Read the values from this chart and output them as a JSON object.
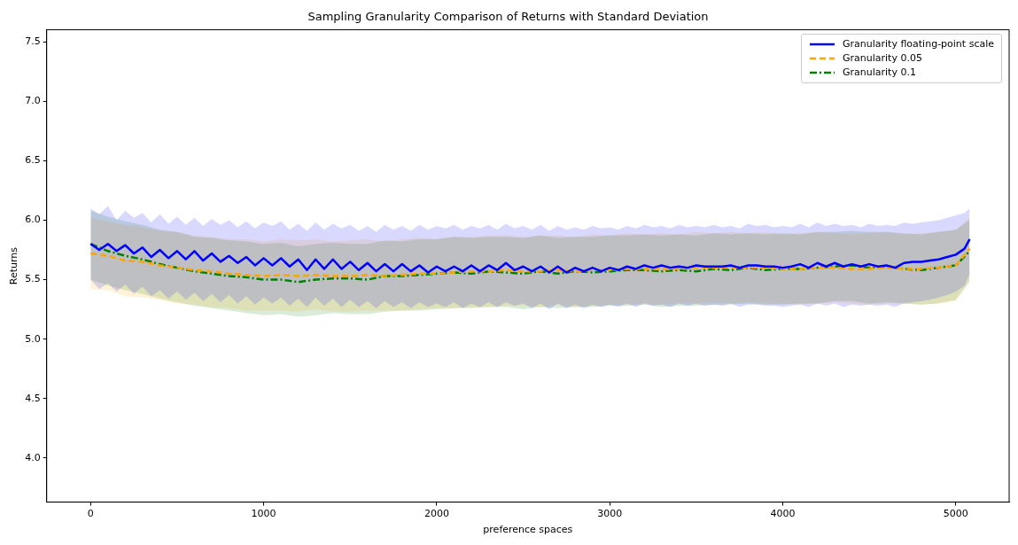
{
  "chart_data": {
    "type": "line",
    "title": "Sampling Granularity Comparison of Returns with Standard Deviation",
    "xlabel": "preference spaces",
    "ylabel": "Returns",
    "xlim": [
      -254,
      5308
    ],
    "ylim": [
      3.63,
      7.6
    ],
    "xticks": [
      0,
      1000,
      2000,
      3000,
      4000,
      5000
    ],
    "yticks": [
      {
        "value": 4,
        "label": "4.0"
      },
      {
        "value": 4.5,
        "label": "4.5"
      },
      {
        "value": 5,
        "label": "5.0"
      },
      {
        "value": 5.5,
        "label": "5.5"
      },
      {
        "value": 6,
        "label": "6.0"
      },
      {
        "value": 6.5,
        "label": "6.5"
      },
      {
        "value": 7,
        "label": "7.0"
      },
      {
        "value": 7.5,
        "label": "7.5"
      }
    ],
    "grid": false,
    "legend": "top right",
    "series": [
      {
        "name": "Granularity floating-point scale",
        "color": "#0000ff",
        "line_style": "solid",
        "x": [
          0,
          50,
          100,
          150,
          200,
          250,
          300,
          350,
          400,
          450,
          500,
          550,
          600,
          650,
          700,
          750,
          800,
          850,
          900,
          950,
          1000,
          1050,
          1100,
          1150,
          1200,
          1250,
          1300,
          1350,
          1400,
          1450,
          1500,
          1550,
          1600,
          1650,
          1700,
          1750,
          1800,
          1850,
          1900,
          1950,
          2000,
          2050,
          2100,
          2150,
          2200,
          2250,
          2300,
          2350,
          2400,
          2450,
          2500,
          2550,
          2600,
          2650,
          2700,
          2750,
          2800,
          2850,
          2900,
          2950,
          3000,
          3050,
          3100,
          3150,
          3200,
          3250,
          3300,
          3350,
          3400,
          3450,
          3500,
          3550,
          3600,
          3650,
          3700,
          3750,
          3800,
          3850,
          3900,
          3950,
          4000,
          4050,
          4100,
          4150,
          4200,
          4250,
          4300,
          4350,
          4400,
          4450,
          4500,
          4550,
          4600,
          4650,
          4700,
          4750,
          4800,
          4850,
          4900,
          4950,
          5000,
          5050,
          5080
        ],
        "values": [
          5.8,
          5.75,
          5.8,
          5.74,
          5.79,
          5.72,
          5.77,
          5.69,
          5.75,
          5.68,
          5.74,
          5.67,
          5.74,
          5.66,
          5.72,
          5.65,
          5.7,
          5.64,
          5.69,
          5.62,
          5.68,
          5.62,
          5.68,
          5.61,
          5.67,
          5.58,
          5.67,
          5.59,
          5.67,
          5.59,
          5.65,
          5.58,
          5.64,
          5.57,
          5.63,
          5.57,
          5.63,
          5.57,
          5.62,
          5.56,
          5.61,
          5.57,
          5.61,
          5.57,
          5.62,
          5.57,
          5.62,
          5.58,
          5.64,
          5.58,
          5.61,
          5.57,
          5.61,
          5.56,
          5.61,
          5.56,
          5.6,
          5.57,
          5.6,
          5.57,
          5.6,
          5.58,
          5.61,
          5.59,
          5.62,
          5.6,
          5.62,
          5.6,
          5.61,
          5.6,
          5.62,
          5.61,
          5.61,
          5.61,
          5.62,
          5.6,
          5.62,
          5.62,
          5.61,
          5.61,
          5.6,
          5.61,
          5.63,
          5.6,
          5.64,
          5.61,
          5.64,
          5.61,
          5.63,
          5.61,
          5.63,
          5.61,
          5.62,
          5.6,
          5.64,
          5.65,
          5.65,
          5.66,
          5.67,
          5.69,
          5.71,
          5.76,
          5.84
        ],
        "upper": [
          6.1,
          6.05,
          6.12,
          6.0,
          6.08,
          6.02,
          6.06,
          5.98,
          6.05,
          5.97,
          6.03,
          5.96,
          6.02,
          5.95,
          6.01,
          5.96,
          6.0,
          5.94,
          5.99,
          5.93,
          5.98,
          5.95,
          5.99,
          5.92,
          5.97,
          5.91,
          5.98,
          5.92,
          5.97,
          5.93,
          5.96,
          5.91,
          5.95,
          5.9,
          5.96,
          5.92,
          5.95,
          5.91,
          5.96,
          5.92,
          5.95,
          5.93,
          5.96,
          5.92,
          5.95,
          5.93,
          5.96,
          5.92,
          5.97,
          5.93,
          5.95,
          5.92,
          5.96,
          5.91,
          5.95,
          5.92,
          5.94,
          5.92,
          5.95,
          5.93,
          5.94,
          5.92,
          5.95,
          5.93,
          5.96,
          5.94,
          5.95,
          5.93,
          5.96,
          5.94,
          5.95,
          5.94,
          5.96,
          5.94,
          5.95,
          5.93,
          5.97,
          5.95,
          5.96,
          5.94,
          5.95,
          5.94,
          5.97,
          5.94,
          5.98,
          5.95,
          5.97,
          5.95,
          5.96,
          5.94,
          5.97,
          5.95,
          5.96,
          5.95,
          5.98,
          5.97,
          5.98,
          5.99,
          6.0,
          6.02,
          6.04,
          6.06,
          6.1
        ],
        "lower": [
          5.5,
          5.42,
          5.47,
          5.4,
          5.46,
          5.38,
          5.44,
          5.36,
          5.41,
          5.34,
          5.4,
          5.33,
          5.39,
          5.32,
          5.38,
          5.31,
          5.37,
          5.3,
          5.36,
          5.29,
          5.35,
          5.3,
          5.35,
          5.28,
          5.34,
          5.27,
          5.35,
          5.28,
          5.34,
          5.27,
          5.33,
          5.27,
          5.32,
          5.26,
          5.32,
          5.27,
          5.31,
          5.26,
          5.31,
          5.27,
          5.3,
          5.27,
          5.31,
          5.26,
          5.3,
          5.27,
          5.31,
          5.27,
          5.31,
          5.28,
          5.3,
          5.26,
          5.3,
          5.25,
          5.3,
          5.26,
          5.29,
          5.26,
          5.29,
          5.27,
          5.29,
          5.27,
          5.3,
          5.27,
          5.3,
          5.28,
          5.29,
          5.27,
          5.3,
          5.28,
          5.3,
          5.28,
          5.29,
          5.28,
          5.3,
          5.27,
          5.29,
          5.29,
          5.28,
          5.28,
          5.27,
          5.28,
          5.29,
          5.27,
          5.3,
          5.28,
          5.3,
          5.27,
          5.29,
          5.28,
          5.29,
          5.28,
          5.29,
          5.27,
          5.3,
          5.31,
          5.32,
          5.33,
          5.35,
          5.37,
          5.4,
          5.45,
          5.55
        ]
      },
      {
        "name": "Granularity 0.05",
        "color": "#ffa500",
        "line_style": "dashed",
        "x": [
          0,
          100,
          200,
          300,
          400,
          500,
          600,
          700,
          800,
          900,
          1000,
          1100,
          1200,
          1300,
          1400,
          1500,
          1600,
          1700,
          1800,
          1900,
          2000,
          2100,
          2200,
          2300,
          2400,
          2500,
          2600,
          2700,
          2800,
          2900,
          3000,
          3100,
          3200,
          3300,
          3400,
          3500,
          3600,
          3700,
          3800,
          3900,
          4000,
          4100,
          4200,
          4300,
          4400,
          4500,
          4600,
          4700,
          4800,
          4900,
          5000,
          5080
        ],
        "values": [
          5.72,
          5.7,
          5.66,
          5.65,
          5.62,
          5.6,
          5.58,
          5.57,
          5.55,
          5.54,
          5.53,
          5.54,
          5.53,
          5.54,
          5.53,
          5.53,
          5.54,
          5.53,
          5.54,
          5.55,
          5.55,
          5.56,
          5.57,
          5.57,
          5.58,
          5.57,
          5.57,
          5.58,
          5.57,
          5.58,
          5.58,
          5.59,
          5.59,
          5.59,
          5.59,
          5.6,
          5.6,
          5.6,
          5.6,
          5.6,
          5.59,
          5.59,
          5.6,
          5.6,
          5.59,
          5.59,
          5.6,
          5.59,
          5.59,
          5.6,
          5.62,
          5.76
        ],
        "upper": [
          6.02,
          5.99,
          5.96,
          5.94,
          5.91,
          5.9,
          5.87,
          5.86,
          5.84,
          5.84,
          5.82,
          5.84,
          5.83,
          5.84,
          5.82,
          5.83,
          5.84,
          5.82,
          5.84,
          5.85,
          5.84,
          5.86,
          5.86,
          5.87,
          5.87,
          5.86,
          5.87,
          5.87,
          5.86,
          5.88,
          5.87,
          5.89,
          5.88,
          5.89,
          5.88,
          5.9,
          5.89,
          5.9,
          5.89,
          5.9,
          5.88,
          5.89,
          5.9,
          5.89,
          5.88,
          5.89,
          5.9,
          5.88,
          5.89,
          5.9,
          5.92,
          6.02
        ],
        "lower": [
          5.42,
          5.41,
          5.36,
          5.35,
          5.33,
          5.3,
          5.29,
          5.27,
          5.26,
          5.24,
          5.24,
          5.24,
          5.23,
          5.25,
          5.23,
          5.23,
          5.24,
          5.24,
          5.24,
          5.25,
          5.26,
          5.26,
          5.27,
          5.27,
          5.28,
          5.28,
          5.27,
          5.29,
          5.27,
          5.28,
          5.29,
          5.29,
          5.3,
          5.29,
          5.3,
          5.3,
          5.31,
          5.3,
          5.31,
          5.3,
          5.3,
          5.29,
          5.3,
          5.31,
          5.3,
          5.29,
          5.3,
          5.3,
          5.29,
          5.3,
          5.32,
          5.5
        ]
      },
      {
        "name": "Granularity 0.1",
        "color": "#008000",
        "line_style": "dashdot",
        "x": [
          0,
          100,
          200,
          300,
          400,
          500,
          600,
          700,
          800,
          900,
          1000,
          1100,
          1200,
          1300,
          1400,
          1500,
          1600,
          1700,
          1800,
          1900,
          2000,
          2100,
          2200,
          2300,
          2400,
          2500,
          2600,
          2700,
          2800,
          2900,
          3000,
          3100,
          3200,
          3300,
          3400,
          3500,
          3600,
          3700,
          3800,
          3900,
          4000,
          4100,
          4200,
          4300,
          4400,
          4500,
          4600,
          4700,
          4800,
          4900,
          5000,
          5080
        ],
        "values": [
          5.8,
          5.74,
          5.7,
          5.67,
          5.63,
          5.6,
          5.57,
          5.55,
          5.53,
          5.52,
          5.5,
          5.5,
          5.48,
          5.5,
          5.51,
          5.51,
          5.5,
          5.53,
          5.53,
          5.54,
          5.55,
          5.56,
          5.55,
          5.57,
          5.56,
          5.55,
          5.57,
          5.55,
          5.57,
          5.56,
          5.57,
          5.58,
          5.58,
          5.57,
          5.58,
          5.57,
          5.59,
          5.58,
          5.6,
          5.58,
          5.59,
          5.59,
          5.6,
          5.61,
          5.62,
          5.6,
          5.61,
          5.59,
          5.58,
          5.6,
          5.62,
          5.74
        ],
        "upper": [
          6.08,
          6.03,
          5.99,
          5.96,
          5.92,
          5.9,
          5.86,
          5.85,
          5.83,
          5.82,
          5.8,
          5.81,
          5.78,
          5.8,
          5.81,
          5.8,
          5.8,
          5.83,
          5.82,
          5.84,
          5.84,
          5.86,
          5.85,
          5.86,
          5.86,
          5.85,
          5.87,
          5.85,
          5.86,
          5.86,
          5.87,
          5.87,
          5.88,
          5.87,
          5.88,
          5.87,
          5.89,
          5.88,
          5.89,
          5.88,
          5.89,
          5.88,
          5.9,
          5.9,
          5.91,
          5.9,
          5.9,
          5.89,
          5.88,
          5.9,
          5.92,
          6.0
        ],
        "lower": [
          5.5,
          5.45,
          5.41,
          5.38,
          5.34,
          5.31,
          5.28,
          5.26,
          5.24,
          5.22,
          5.2,
          5.21,
          5.19,
          5.2,
          5.22,
          5.21,
          5.21,
          5.23,
          5.24,
          5.24,
          5.25,
          5.26,
          5.26,
          5.27,
          5.27,
          5.25,
          5.27,
          5.26,
          5.27,
          5.27,
          5.28,
          5.28,
          5.29,
          5.27,
          5.28,
          5.28,
          5.29,
          5.29,
          5.3,
          5.29,
          5.29,
          5.3,
          5.3,
          5.32,
          5.32,
          5.3,
          5.31,
          5.3,
          5.29,
          5.3,
          5.33,
          5.48
        ]
      }
    ]
  }
}
